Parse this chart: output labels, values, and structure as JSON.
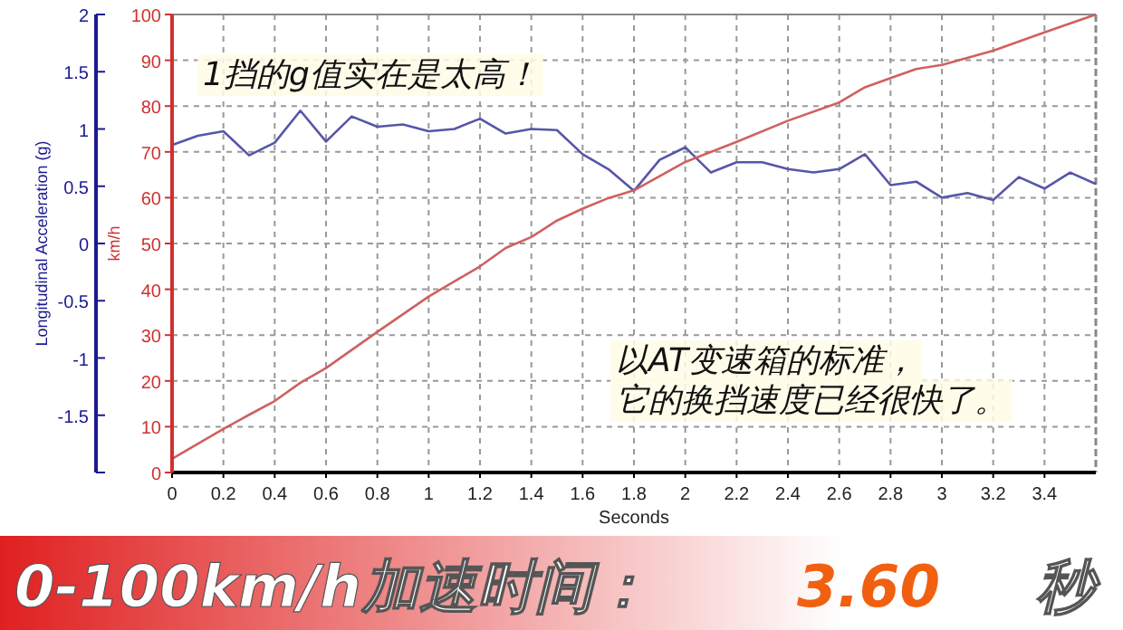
{
  "chart_data": {
    "type": "line",
    "xlabel": "Seconds",
    "ylabel": "Longitudinal Acceleration (g)",
    "y2label": "km/h",
    "xlim": [
      0,
      3.6
    ],
    "xticks": [
      0,
      0.2,
      0.4,
      0.6,
      0.8,
      1,
      1.2,
      1.4,
      1.6,
      1.8,
      2,
      2.2,
      2.4,
      2.6,
      2.8,
      3,
      3.2,
      3.4
    ],
    "ylim": [
      -2,
      2
    ],
    "yticks": [
      {
        "value": -2,
        "label": null
      },
      -1.5,
      -1,
      -0.5,
      0,
      0.5,
      1,
      1.5,
      2
    ],
    "y2lim": [
      0,
      100
    ],
    "y2ticks": [
      0,
      10,
      20,
      30,
      40,
      50,
      60,
      70,
      80,
      90,
      100
    ],
    "grid": true,
    "series": [
      {
        "color": "#5656a8",
        "x": [
          0,
          0.1,
          0.2,
          0.3,
          0.4,
          0.5,
          0.6,
          0.7,
          0.8,
          0.9,
          1,
          1.1,
          1.2,
          1.3,
          1.4,
          1.5,
          1.6,
          1.7,
          1.8,
          1.9,
          2,
          2.1,
          2.2,
          2.3,
          2.4,
          2.5,
          2.6,
          2.7,
          2.8,
          2.9,
          3,
          3.1,
          3.2,
          3.3,
          3.4,
          3.5,
          3.6
        ],
        "values": [
          0.86,
          0.94,
          0.98,
          0.77,
          0.88,
          1.16,
          0.89,
          1.11,
          1.02,
          1.04,
          0.98,
          1.0,
          1.09,
          0.96,
          1.0,
          0.99,
          0.78,
          0.65,
          0.46,
          0.73,
          0.84,
          0.62,
          0.71,
          0.71,
          0.65,
          0.62,
          0.65,
          0.78,
          0.51,
          0.54,
          0.4,
          0.44,
          0.38,
          0.58,
          0.48,
          0.62,
          0.52
        ]
      },
      {
        "color": "#d06060",
        "axis": "y2",
        "x": [
          0,
          0.2,
          0.3,
          0.4,
          0.5,
          0.6,
          0.8,
          1,
          1.2,
          1.3,
          1.4,
          1.5,
          1.6,
          1.7,
          1.8,
          2,
          2.2,
          2.4,
          2.6,
          2.7,
          2.8,
          2.9,
          3,
          3.2,
          3.4,
          3.6
        ],
        "values": [
          3,
          9.5,
          12.6,
          15.6,
          19.6,
          22.8,
          30.7,
          38.4,
          45,
          49,
          51.4,
          55,
          57.6,
          59.9,
          61.6,
          67.8,
          72.2,
          76.8,
          80.8,
          84.1,
          86.1,
          88.1,
          89,
          92.1,
          96.1,
          100
        ]
      }
    ],
    "annotations": [
      "1挡的g值实在是太高！",
      "以AT变速箱的标准，",
      "它的换挡速度已经很快了。",
      "0-100km/h加速时间：",
      "3.60",
      "秒"
    ]
  }
}
